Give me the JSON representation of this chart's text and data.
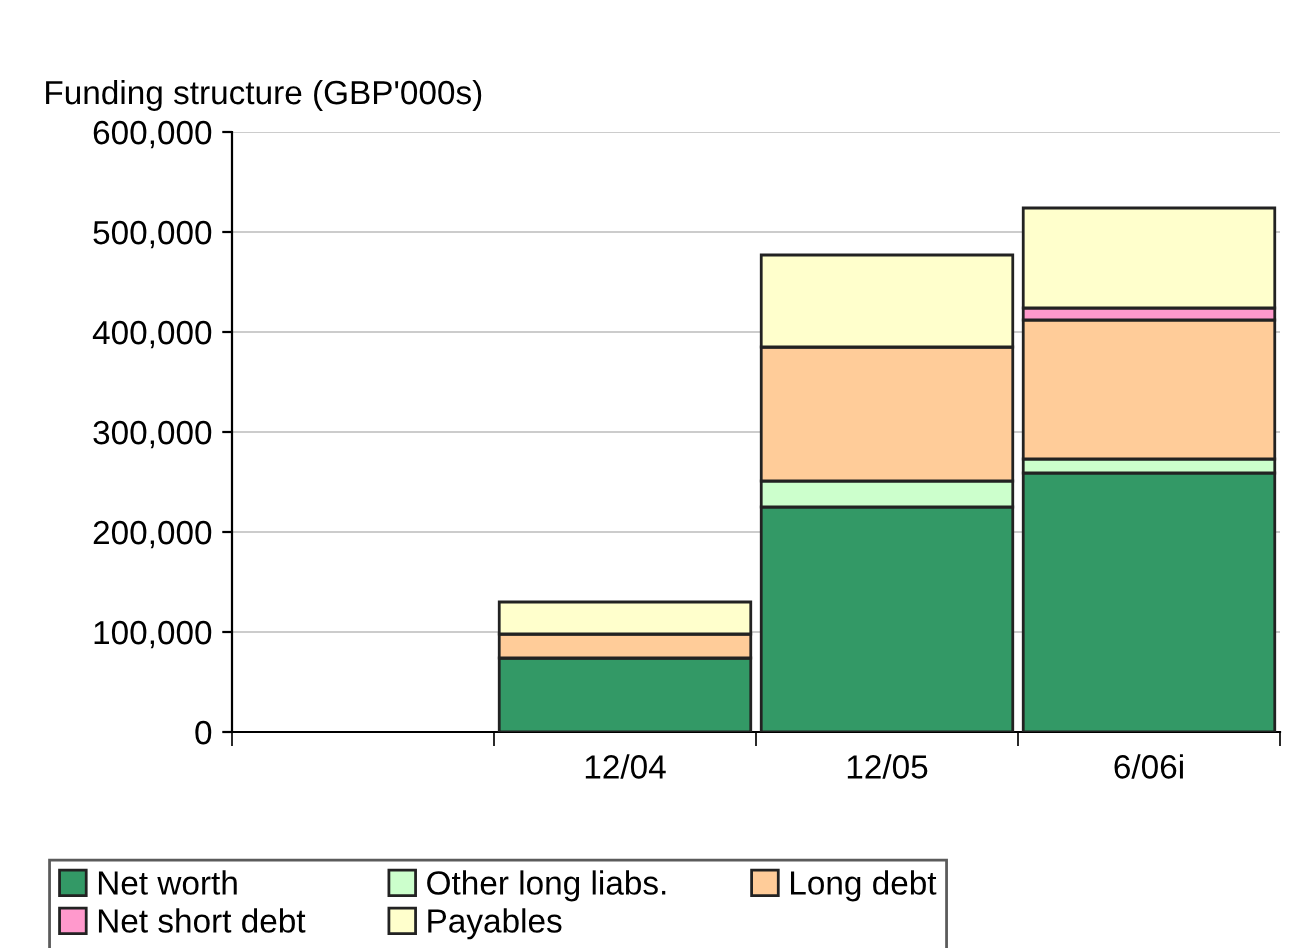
{
  "chart_data": {
    "type": "bar",
    "title": "Funding structure (GBP'000s)",
    "stacked": true,
    "categories": [
      null,
      "12/04",
      "12/05",
      "6/06i"
    ],
    "series": [
      {
        "name": "Net worth",
        "color": "#339966",
        "values": [
          null,
          74000,
          225000,
          259000
        ]
      },
      {
        "name": "Other long liabs.",
        "color": "#ccffcc",
        "values": [
          null,
          0,
          26000,
          14000
        ]
      },
      {
        "name": "Long debt",
        "color": "#ffcc99",
        "values": [
          null,
          24000,
          134000,
          139000
        ]
      },
      {
        "name": "Net short debt",
        "color": "#ff99cc",
        "values": [
          null,
          0,
          0,
          12000
        ]
      },
      {
        "name": "Payables",
        "color": "#ffffcc",
        "values": [
          null,
          32000,
          92000,
          100000
        ]
      }
    ],
    "ylim": [
      0,
      600000
    ],
    "yticks": [
      {
        "value": 0,
        "label": "0"
      },
      {
        "value": 100000,
        "label": "100,000"
      },
      {
        "value": 200000,
        "label": "200,000"
      },
      {
        "value": 300000,
        "label": "300,000"
      },
      {
        "value": 400000,
        "label": "400,000"
      },
      {
        "value": 500000,
        "label": "500,000"
      },
      {
        "value": 600000,
        "label": "600,000"
      }
    ],
    "grid": "y",
    "legend": "bottom"
  }
}
